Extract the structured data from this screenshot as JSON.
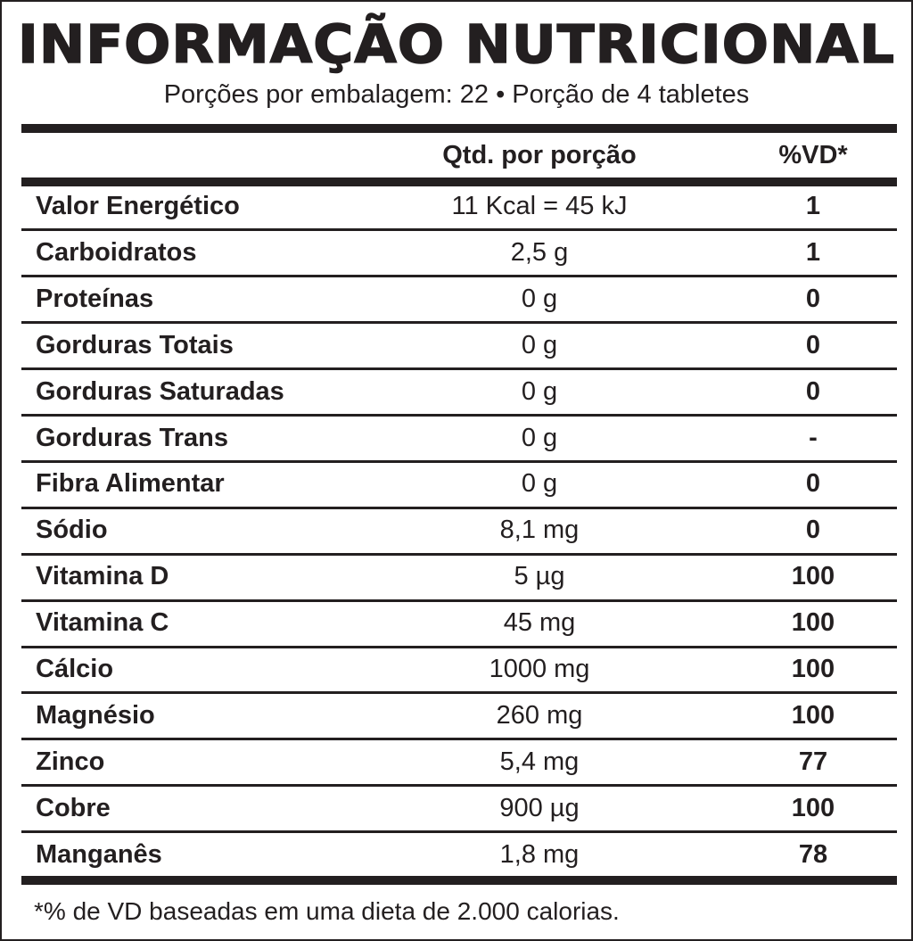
{
  "label": {
    "title": "INFORMAÇÃO NUTRICIONAL",
    "subtitle": "Porções por embalagem: 22 • Porção de 4 tabletes",
    "columns": {
      "qty": "Qtd. por porção",
      "vd": "%VD*"
    },
    "rows": [
      {
        "name": "Valor Energético",
        "qty": "11 Kcal = 45 kJ",
        "vd": "1"
      },
      {
        "name": "Carboidratos",
        "qty": "2,5 g",
        "vd": "1"
      },
      {
        "name": "Proteínas",
        "qty": "0 g",
        "vd": "0"
      },
      {
        "name": "Gorduras Totais",
        "qty": "0 g",
        "vd": "0"
      },
      {
        "name": "Gorduras Saturadas",
        "qty": "0 g",
        "vd": "0"
      },
      {
        "name": "Gorduras Trans",
        "qty": "0 g",
        "vd": "-"
      },
      {
        "name": "Fibra Alimentar",
        "qty": "0 g",
        "vd": "0"
      },
      {
        "name": "Sódio",
        "qty": "8,1 mg",
        "vd": "0"
      },
      {
        "name": "Vitamina D",
        "qty": "5 µg",
        "vd": "100"
      },
      {
        "name": "Vitamina C",
        "qty": "45 mg",
        "vd": "100"
      },
      {
        "name": "Cálcio",
        "qty": "1000 mg",
        "vd": "100"
      },
      {
        "name": "Magnésio",
        "qty": "260 mg",
        "vd": "100"
      },
      {
        "name": "Zinco",
        "qty": "5,4 mg",
        "vd": "77"
      },
      {
        "name": "Cobre",
        "qty": "900 µg",
        "vd": "100"
      },
      {
        "name": "Manganês",
        "qty": "1,8 mg",
        "vd": "78"
      }
    ],
    "footnote": "*% de VD baseadas em uma dieta de 2.000 calorias."
  }
}
